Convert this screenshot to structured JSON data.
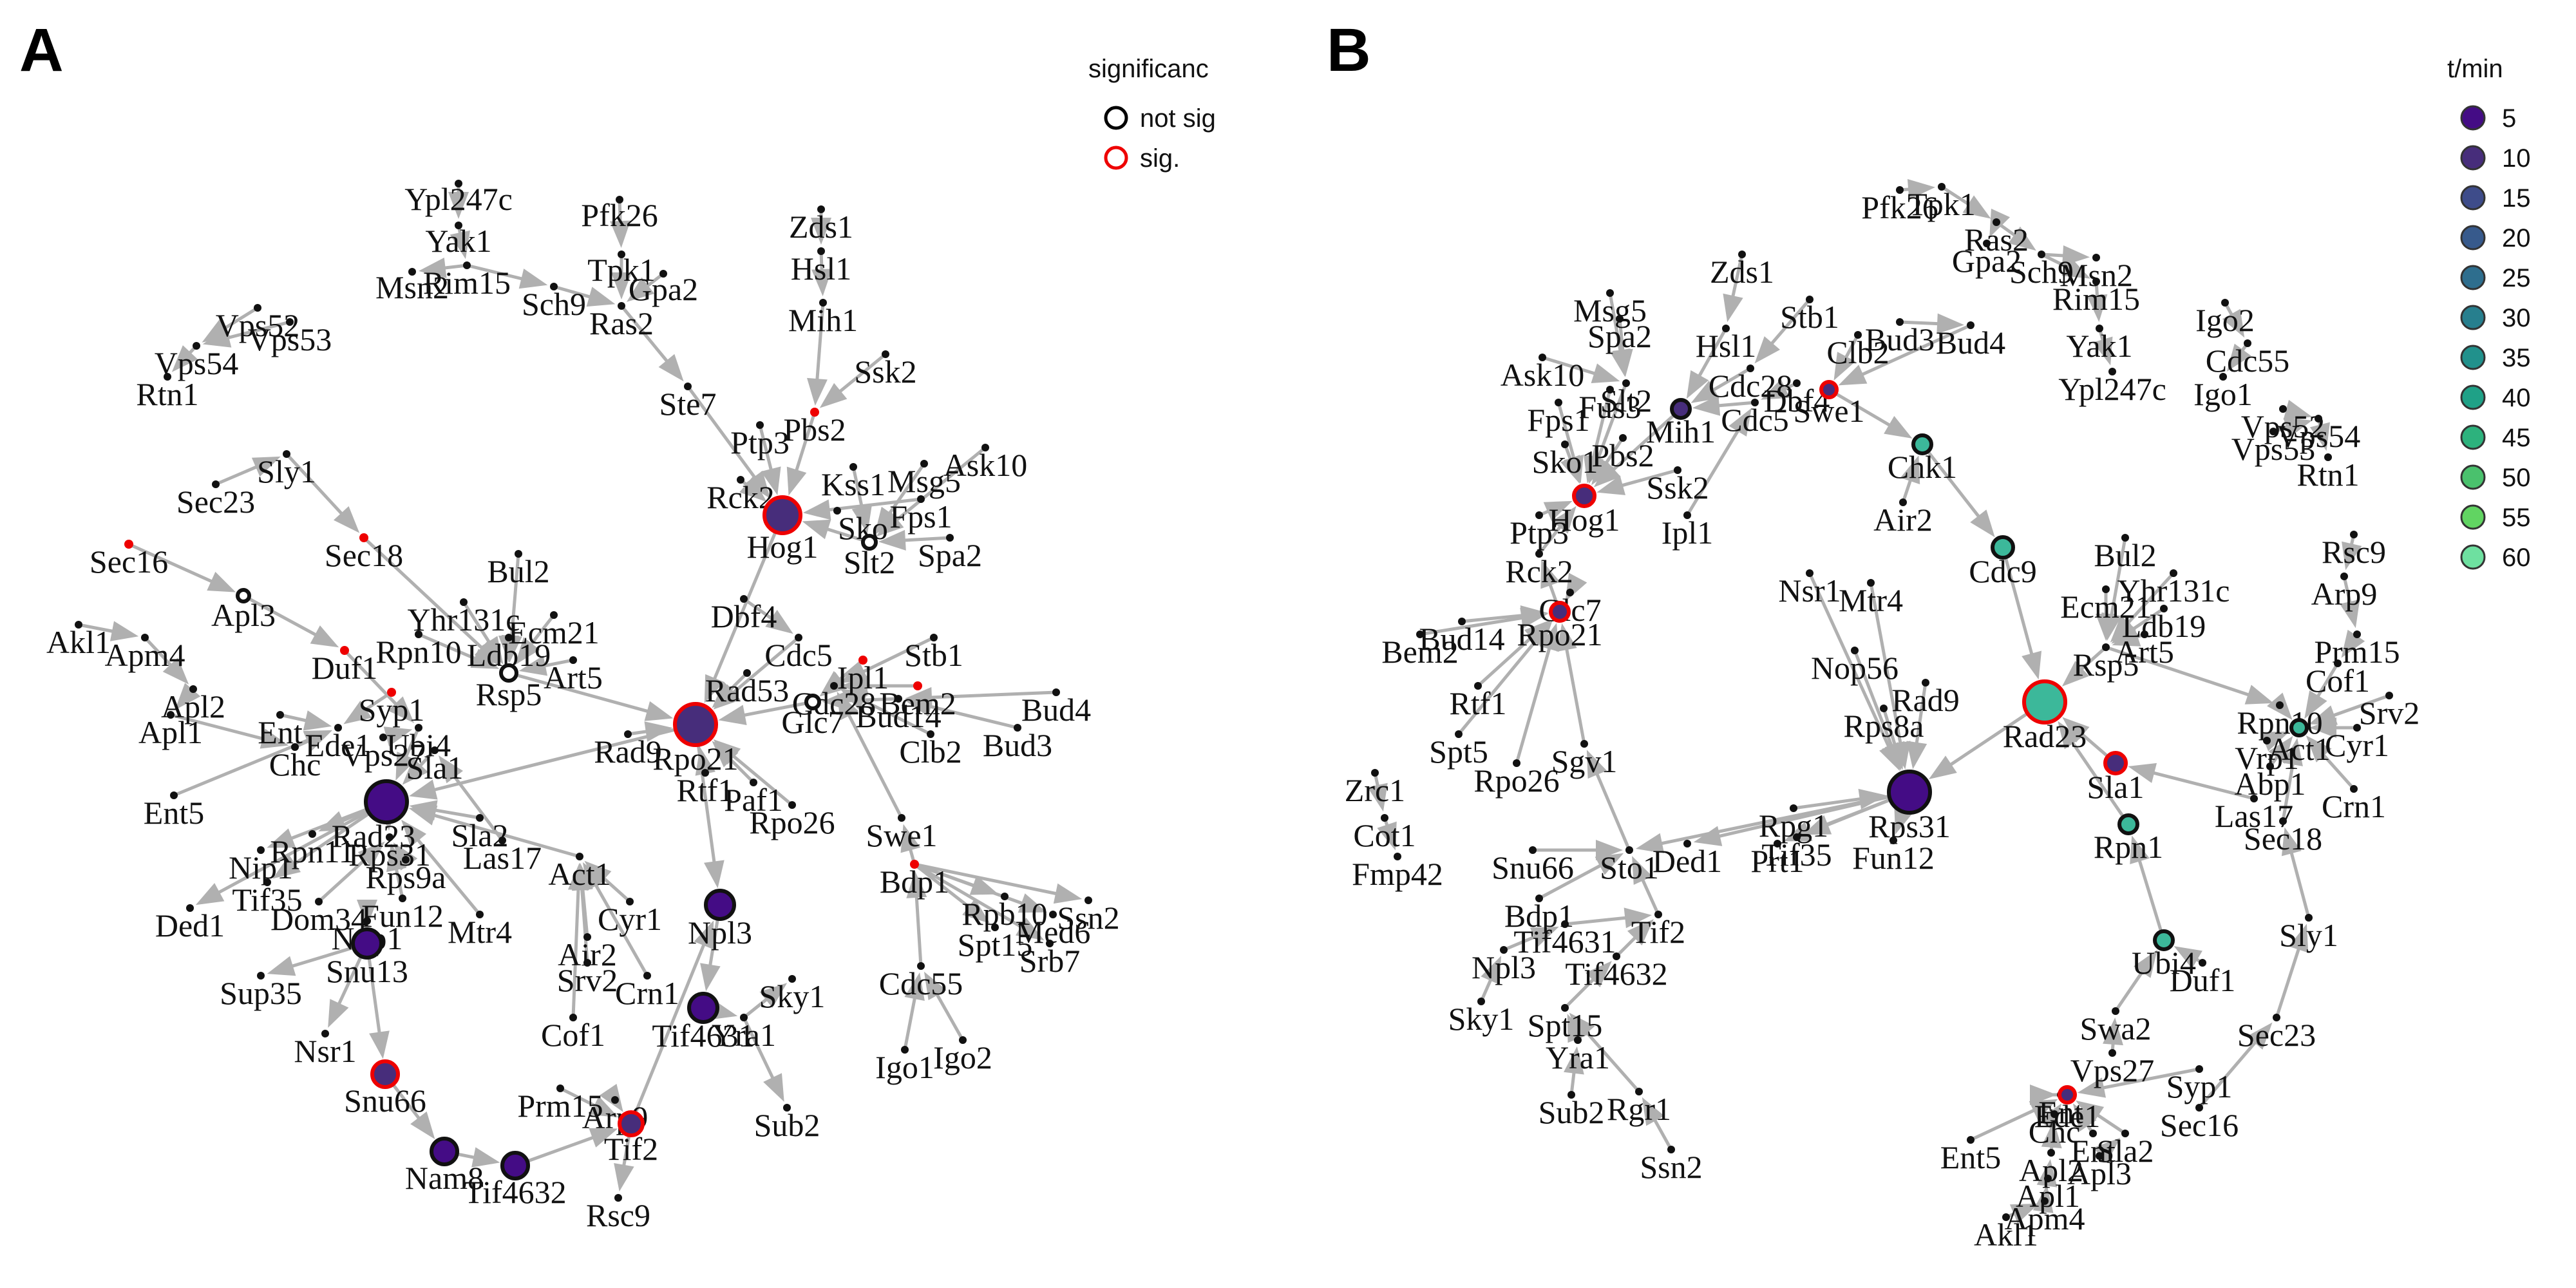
{
  "panels": [
    {
      "letter": "A",
      "legend": {
        "title": "significanc",
        "items": [
          {
            "label": "not sig",
            "color": "#000000"
          },
          {
            "label": "sig.",
            "color": "#ee0000"
          }
        ]
      },
      "edge_color": "#b0b0b0",
      "nodes": [
        {
          "id": "Ypl247c"
        },
        {
          "id": "Yak1"
        },
        {
          "id": "Msn2"
        },
        {
          "id": "Rim15"
        },
        {
          "id": "Pfk26"
        },
        {
          "id": "Tpk1"
        },
        {
          "id": "Gpa2"
        },
        {
          "id": "Sch9"
        },
        {
          "id": "Ras2"
        },
        {
          "id": "Ste7"
        },
        {
          "id": "Zds1"
        },
        {
          "id": "Hsl1"
        },
        {
          "id": "Mih1"
        },
        {
          "id": "Ssk2"
        },
        {
          "id": "Ptp3"
        },
        {
          "id": "Pbs2",
          "sig": true
        },
        {
          "id": "Ask10"
        },
        {
          "id": "Msg5"
        },
        {
          "id": "Kss1"
        },
        {
          "id": "Fps1"
        },
        {
          "id": "Rck2"
        },
        {
          "id": "Sko1",
          "label": "Sko"
        },
        {
          "id": "Hog1",
          "sig": true,
          "size": 28,
          "t": 10
        },
        {
          "id": "Slt2",
          "size": 10,
          "t": 0
        },
        {
          "id": "Spa2"
        },
        {
          "id": "Vps52"
        },
        {
          "id": "Vps53"
        },
        {
          "id": "Vps54"
        },
        {
          "id": "Rtn1"
        },
        {
          "id": "Sec23"
        },
        {
          "id": "Sly1"
        },
        {
          "id": "Sec18",
          "sig": true
        },
        {
          "id": "Sec16",
          "sig": true
        },
        {
          "id": "Apl3",
          "size": 9,
          "t": 0
        },
        {
          "id": "Akl1"
        },
        {
          "id": "Apm4"
        },
        {
          "id": "Apl2"
        },
        {
          "id": "Apl1"
        },
        {
          "id": "Bul2"
        },
        {
          "id": "Yhr131c"
        },
        {
          "id": "Ecm21"
        },
        {
          "id": "Ldb19"
        },
        {
          "id": "Rpn10"
        },
        {
          "id": "Art5"
        },
        {
          "id": "Rsp5",
          "size": 12,
          "t": 0
        },
        {
          "id": "Duf1",
          "sig": true
        },
        {
          "id": "Syp1",
          "sig": true
        },
        {
          "id": "Ent"
        },
        {
          "id": "Ede1"
        },
        {
          "id": "Chc1",
          "label": "Chc"
        },
        {
          "id": "Ent5"
        },
        {
          "id": "Vps27"
        },
        {
          "id": "Ubi4"
        },
        {
          "id": "Sla1"
        },
        {
          "id": "Rad23",
          "size": 32,
          "t": 5
        },
        {
          "id": "Rpn11"
        },
        {
          "id": "Nip1",
          "label": "Nip1"
        },
        {
          "id": "Tif35"
        },
        {
          "id": "Ded1"
        },
        {
          "id": "Rps31",
          "label": "Rps31"
        },
        {
          "id": "Rps9a"
        },
        {
          "id": "Sla2"
        },
        {
          "id": "Las17"
        },
        {
          "id": "Fun12"
        },
        {
          "id": "Dom34"
        },
        {
          "id": "Nop1"
        },
        {
          "id": "Snu13",
          "size": 22,
          "t": 5
        },
        {
          "id": "Sup35"
        },
        {
          "id": "Nsr1"
        },
        {
          "id": "Snu66",
          "sig": true,
          "size": 20,
          "t": 10
        },
        {
          "id": "Nam8",
          "size": 20,
          "t": 5
        },
        {
          "id": "Tif4632",
          "size": 20,
          "t": 5
        },
        {
          "id": "Act1"
        },
        {
          "id": "Mtr4"
        },
        {
          "id": "Cyr1"
        },
        {
          "id": "Air2"
        },
        {
          "id": "Srv2"
        },
        {
          "id": "Crn1"
        },
        {
          "id": "Cof1"
        },
        {
          "id": "Prm15"
        },
        {
          "id": "Arp9"
        },
        {
          "id": "Tif2",
          "sig": true,
          "size": 18,
          "t": 10
        },
        {
          "id": "Rsc9"
        },
        {
          "id": "Npl3",
          "size": 22,
          "t": 5
        },
        {
          "id": "Tif4631",
          "size": 22,
          "t": 5
        },
        {
          "id": "Yra1"
        },
        {
          "id": "Sky1"
        },
        {
          "id": "Sub2"
        },
        {
          "id": "Rad9"
        },
        {
          "id": "Rpo21",
          "sig": true,
          "size": 32,
          "t": 10
        },
        {
          "id": "Rad53"
        },
        {
          "id": "Dbf4"
        },
        {
          "id": "Cdc5"
        },
        {
          "id": "Ipl1",
          "sig": true
        },
        {
          "id": "Cdc28"
        },
        {
          "id": "Glc7",
          "size": 10,
          "t": 0
        },
        {
          "id": "Stb1"
        },
        {
          "id": "Bem2",
          "sig": true
        },
        {
          "id": "Bud14"
        },
        {
          "id": "Bud4"
        },
        {
          "id": "Clb2"
        },
        {
          "id": "Bud3"
        },
        {
          "id": "Rtf1"
        },
        {
          "id": "Paf1"
        },
        {
          "id": "Rpo26"
        },
        {
          "id": "Swe1"
        },
        {
          "id": "Bdp1",
          "sig": true
        },
        {
          "id": "Rpb10"
        },
        {
          "id": "Ssn2"
        },
        {
          "id": "Spt15"
        },
        {
          "id": "Med6"
        },
        {
          "id": "Srb7"
        },
        {
          "id": "Cdc55"
        },
        {
          "id": "Igo1"
        },
        {
          "id": "Igo2"
        }
      ]
    },
    {
      "letter": "B",
      "legend": {
        "title": "t/min",
        "items": [
          {
            "label": "5",
            "color": "#440c85"
          },
          {
            "label": "10",
            "color": "#472d7b"
          },
          {
            "label": "15",
            "color": "#3e4c8a"
          },
          {
            "label": "20",
            "color": "#375a8c"
          },
          {
            "label": "25",
            "color": "#2e6e8e"
          },
          {
            "label": "30",
            "color": "#277f8e"
          },
          {
            "label": "35",
            "color": "#21918c"
          },
          {
            "label": "40",
            "color": "#1fa187"
          },
          {
            "label": "45",
            "color": "#2db27d"
          },
          {
            "label": "50",
            "color": "#4ac16d"
          },
          {
            "label": "55",
            "color": "#61d462"
          },
          {
            "label": "60",
            "color": "#6ee0a0"
          }
        ]
      },
      "edge_color": "#b0b0b0",
      "nodes": [
        {
          "id": "Pfk26"
        },
        {
          "id": "Tpk1"
        },
        {
          "id": "Ras2"
        },
        {
          "id": "Gpa2"
        },
        {
          "id": "Sch9"
        },
        {
          "id": "Msn2"
        },
        {
          "id": "Rim15"
        },
        {
          "id": "Yak1"
        },
        {
          "id": "Ypl247c"
        },
        {
          "id": "Igo2"
        },
        {
          "id": "Cdc55"
        },
        {
          "id": "Igo1"
        },
        {
          "id": "Vps52"
        },
        {
          "id": "Vps53"
        },
        {
          "id": "Vps54"
        },
        {
          "id": "Rtn1"
        },
        {
          "id": "Msg5"
        },
        {
          "id": "Zds1"
        },
        {
          "id": "Stb1"
        },
        {
          "id": "Spa2"
        },
        {
          "id": "Hsl1"
        },
        {
          "id": "Ask10"
        },
        {
          "id": "Slt2"
        },
        {
          "id": "Cdc28"
        },
        {
          "id": "Fus3"
        },
        {
          "id": "Fps1"
        },
        {
          "id": "Dbf4"
        },
        {
          "id": "Swe1",
          "sig": true,
          "size": 12,
          "t": 10
        },
        {
          "id": "Clb2"
        },
        {
          "id": "Bud3"
        },
        {
          "id": "Bud4"
        },
        {
          "id": "Mih1",
          "size": 14,
          "t": 10
        },
        {
          "id": "Cdc5"
        },
        {
          "id": "Sko1"
        },
        {
          "id": "Pbs2"
        },
        {
          "id": "Ssk2"
        },
        {
          "id": "Hog1",
          "sig": true,
          "size": 16,
          "t": 10
        },
        {
          "id": "Ptp3"
        },
        {
          "id": "Ipl1"
        },
        {
          "id": "Chk1",
          "size": 14,
          "t": 45
        },
        {
          "id": "Air2"
        },
        {
          "id": "Mtr4"
        },
        {
          "id": "Cdc9",
          "size": 16,
          "t": 45
        },
        {
          "id": "Rck2"
        },
        {
          "id": "Glc7"
        },
        {
          "id": "Rpo21",
          "sig": true,
          "size": 14,
          "t": 10
        },
        {
          "id": "Bem2"
        },
        {
          "id": "Bud14"
        },
        {
          "id": "Nsr1"
        },
        {
          "id": "Nop56"
        },
        {
          "id": "Rad9"
        },
        {
          "id": "Rps8a"
        },
        {
          "id": "Rad23",
          "sig": true,
          "size": 32,
          "t": 45
        },
        {
          "id": "Bul2"
        },
        {
          "id": "Yhr131c"
        },
        {
          "id": "Ecm21"
        },
        {
          "id": "Ldb19"
        },
        {
          "id": "Art5"
        },
        {
          "id": "Rsp5"
        },
        {
          "id": "Rsc9"
        },
        {
          "id": "Arp9"
        },
        {
          "id": "Prm15"
        },
        {
          "id": "Cof1"
        },
        {
          "id": "Srv2"
        },
        {
          "id": "Rpn10"
        },
        {
          "id": "Act1",
          "size": 12,
          "t": 45
        },
        {
          "id": "Cyr1"
        },
        {
          "id": "Vrp1"
        },
        {
          "id": "Abp1"
        },
        {
          "id": "Crn1"
        },
        {
          "id": "Las17"
        },
        {
          "id": "Sec18"
        },
        {
          "id": "Sla1",
          "sig": true,
          "size": 16,
          "t": 10
        },
        {
          "id": "Rpn1",
          "size": 14,
          "t": 45
        },
        {
          "id": "Rtf1"
        },
        {
          "id": "Spt5"
        },
        {
          "id": "Sgv1"
        },
        {
          "id": "Rpo26"
        },
        {
          "id": "Zrc1"
        },
        {
          "id": "Cot1"
        },
        {
          "id": "Fmp42"
        },
        {
          "id": "Rpg1"
        },
        {
          "id": "Rps31",
          "label": "Rps31",
          "size": 32,
          "t": 5
        },
        {
          "id": "Fun12"
        },
        {
          "id": "Ded1"
        },
        {
          "id": "Prt1"
        },
        {
          "id": "Tif35"
        },
        {
          "id": "Snu66"
        },
        {
          "id": "Sto1"
        },
        {
          "id": "Bdp1"
        },
        {
          "id": "Tif4631"
        },
        {
          "id": "Tif2"
        },
        {
          "id": "Npl3"
        },
        {
          "id": "Tif4632"
        },
        {
          "id": "Sky1"
        },
        {
          "id": "Spt15"
        },
        {
          "id": "Yra1"
        },
        {
          "id": "Sub2"
        },
        {
          "id": "Rgr1"
        },
        {
          "id": "Ssn2"
        },
        {
          "id": "Sly1"
        },
        {
          "id": "Sec23"
        },
        {
          "id": "Ubi4",
          "size": 14,
          "t": 45
        },
        {
          "id": "Duf1"
        },
        {
          "id": "Swa2"
        },
        {
          "id": "Vps27"
        },
        {
          "id": "Syp1"
        },
        {
          "id": "Sec16"
        },
        {
          "id": "Ent1",
          "label": "Ent"
        },
        {
          "id": "Ede1",
          "sig": true,
          "size": 12,
          "t": 10
        },
        {
          "id": "Chc1",
          "label": "Chc"
        },
        {
          "id": "Ent2",
          "label": "Ent"
        },
        {
          "id": "Sla2"
        },
        {
          "id": "Ent5"
        },
        {
          "id": "Apl2"
        },
        {
          "id": "Apl3"
        },
        {
          "id": "Apl1"
        },
        {
          "id": "Apm4"
        },
        {
          "id": "Akl1"
        }
      ]
    }
  ]
}
